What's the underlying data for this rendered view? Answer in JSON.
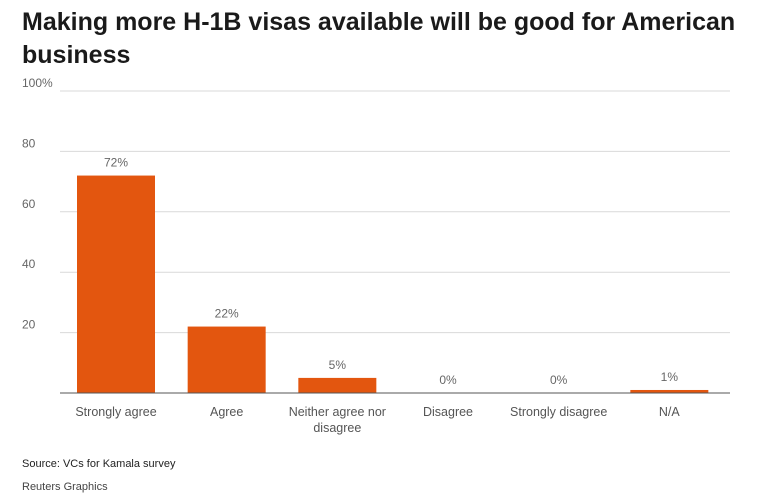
{
  "header": {
    "title": "Making more H-1B visas available will be good for American business"
  },
  "footer": {
    "source": "Source: VCs for Kamala survey",
    "credit": "Reuters Graphics"
  },
  "colors": {
    "bar": "#e3560f",
    "grid": "#d9d9d9",
    "text": "#666666"
  },
  "chart_data": {
    "type": "bar",
    "title": "Making more H-1B visas available will be good for American business",
    "xlabel": "",
    "ylabel": "",
    "categories": [
      "Strongly agree",
      "Agree",
      "Neither agree nor disagree",
      "Disagree",
      "Strongly disagree",
      "N/A"
    ],
    "category_lines": [
      [
        "Strongly agree"
      ],
      [
        "Agree"
      ],
      [
        "Neither agree nor",
        "disagree"
      ],
      [
        "Disagree"
      ],
      [
        "Strongly disagree"
      ],
      [
        "N/A"
      ]
    ],
    "values": [
      72,
      22,
      5,
      0,
      0,
      1
    ],
    "data_labels": [
      "72%",
      "22%",
      "5%",
      "0%",
      "0%",
      "1%"
    ],
    "ylim": [
      0,
      100
    ],
    "yticks": [
      20,
      40,
      60,
      80,
      100
    ],
    "ytick_labels": [
      "20",
      "40",
      "60",
      "80",
      "100%"
    ],
    "grid": true,
    "legend": "none"
  }
}
